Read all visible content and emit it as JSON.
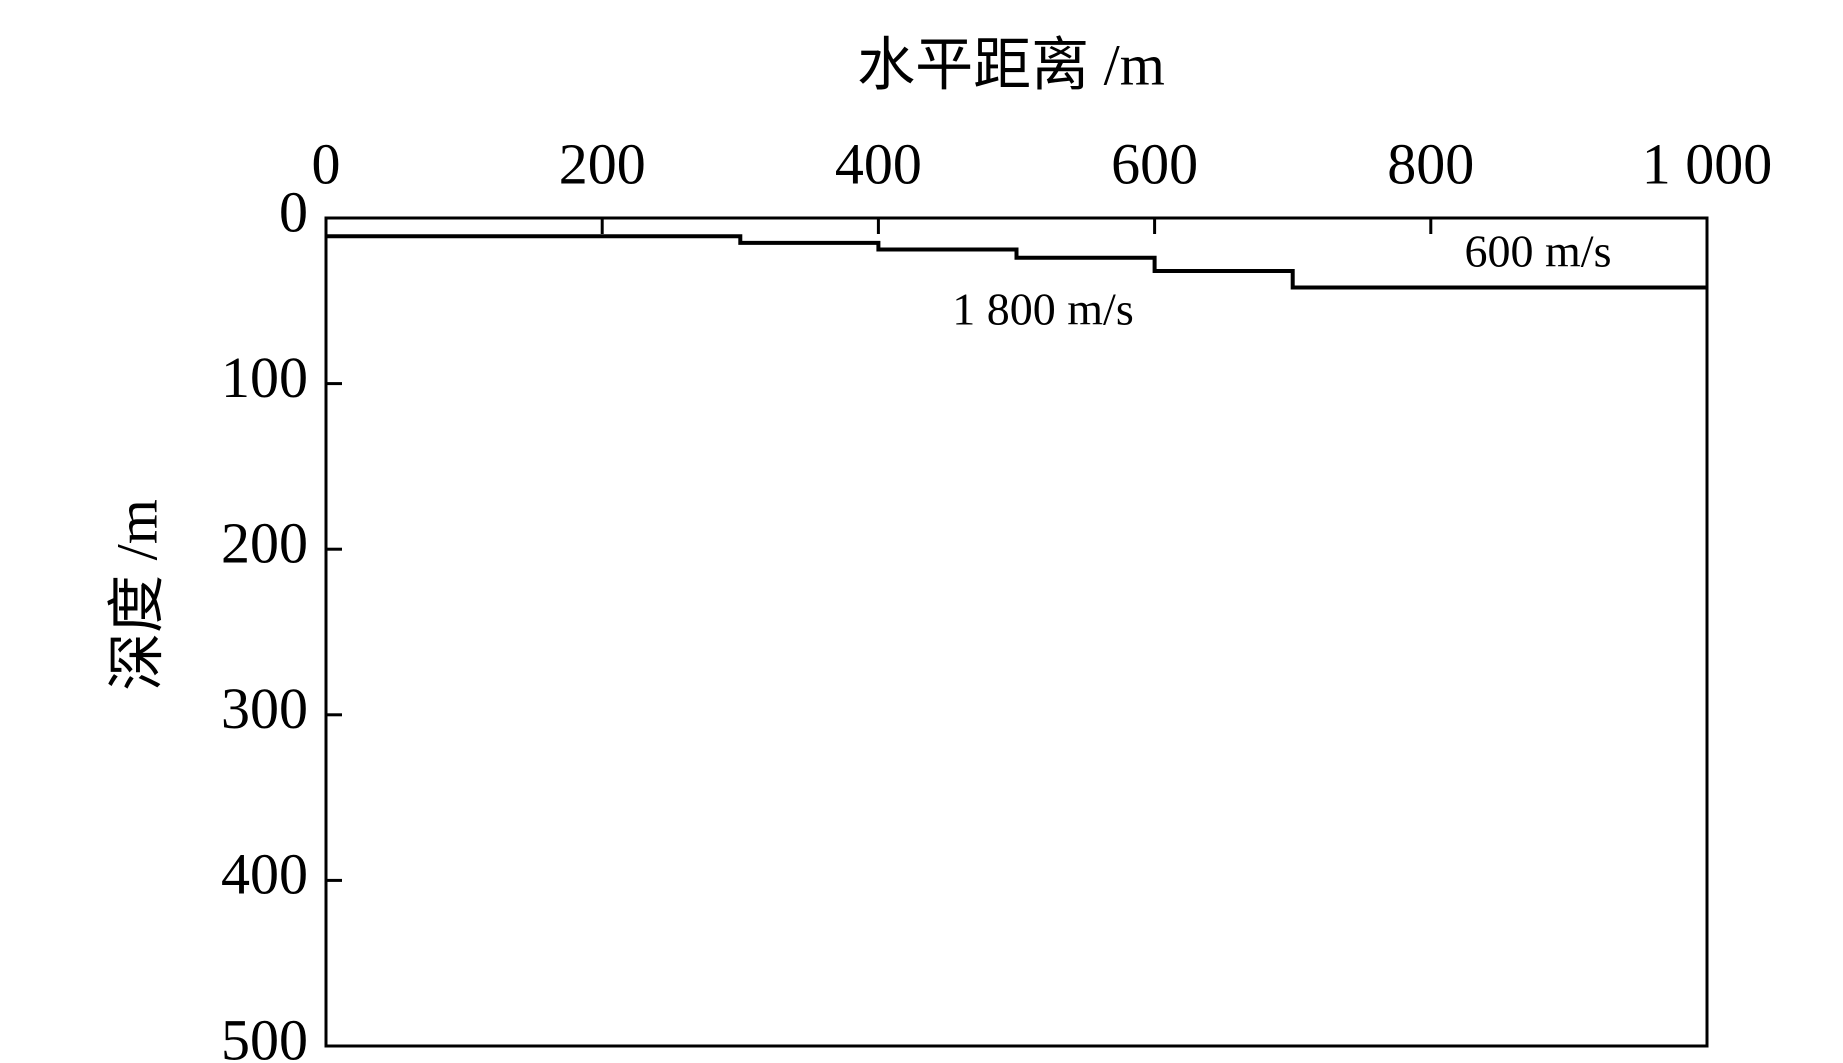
{
  "chart_data": {
    "type": "line",
    "title": "水平距离 /m",
    "y_label": "深度 /m",
    "x": [
      0,
      300,
      300,
      400,
      400,
      500,
      500,
      600,
      600,
      700,
      700,
      1000
    ],
    "series": [
      {
        "color": "#000000",
        "values": [
          11,
          11,
          15,
          15,
          19,
          19,
          24,
          24,
          32,
          32,
          42,
          42
        ]
      }
    ],
    "annotations": [
      "600 m/s",
      "1 800 m/s"
    ],
    "xlim": [
      0,
      1000
    ],
    "xticks": [
      0,
      200,
      400,
      600,
      800,
      {
        "value": 1000,
        "label": "1 000"
      }
    ],
    "ylim": [
      0,
      500
    ],
    "yticks": [
      0,
      100,
      200,
      300,
      400,
      500
    ],
    "y_inverted": true,
    "x_axis_position": "top",
    "grid": false
  }
}
